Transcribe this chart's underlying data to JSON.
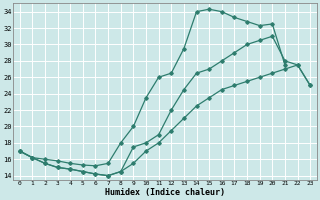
{
  "xlabel": "Humidex (Indice chaleur)",
  "xlim": [
    -0.5,
    23.5
  ],
  "ylim": [
    13.5,
    35
  ],
  "yticks": [
    14,
    16,
    18,
    20,
    22,
    24,
    26,
    28,
    30,
    32,
    34
  ],
  "xticks": [
    0,
    1,
    2,
    3,
    4,
    5,
    6,
    7,
    8,
    9,
    10,
    11,
    12,
    13,
    14,
    15,
    16,
    17,
    18,
    19,
    20,
    21,
    22,
    23
  ],
  "bg_color": "#cde8e8",
  "grid_color": "#b0d4d4",
  "line_color": "#2e7d6e",
  "line1_x": [
    0,
    1,
    2,
    3,
    4,
    5,
    6,
    7,
    8,
    9,
    10,
    11,
    12,
    13,
    14,
    15,
    16,
    17,
    18,
    19,
    20,
    21
  ],
  "line1_y": [
    17.0,
    16.2,
    16.0,
    15.8,
    15.5,
    15.3,
    15.2,
    15.5,
    18.0,
    20.0,
    23.5,
    26.0,
    26.5,
    29.5,
    34.0,
    34.3,
    34.0,
    33.3,
    32.8,
    32.3,
    32.5,
    27.5
  ],
  "line2_x": [
    0,
    1,
    2,
    3,
    4,
    5,
    6,
    7,
    8,
    9,
    10,
    11,
    12,
    13,
    14,
    15,
    16,
    17,
    18,
    19,
    20,
    21,
    22,
    23
  ],
  "line2_y": [
    17.0,
    16.2,
    15.5,
    15.0,
    14.8,
    14.5,
    14.2,
    14.0,
    14.5,
    17.5,
    18.0,
    19.0,
    22.0,
    24.5,
    26.5,
    27.0,
    28.0,
    29.0,
    30.0,
    30.5,
    31.0,
    28.0,
    27.5,
    25.0
  ],
  "line3_x": [
    0,
    1,
    2,
    3,
    4,
    5,
    6,
    7,
    8,
    9,
    10,
    11,
    12,
    13,
    14,
    15,
    16,
    17,
    18,
    19,
    20,
    21,
    22,
    23
  ],
  "line3_y": [
    17.0,
    16.2,
    15.5,
    15.0,
    14.8,
    14.5,
    14.2,
    14.0,
    14.5,
    15.5,
    17.0,
    18.0,
    19.5,
    21.0,
    22.5,
    23.5,
    24.5,
    25.0,
    25.5,
    26.0,
    26.5,
    27.0,
    27.5,
    25.0
  ]
}
